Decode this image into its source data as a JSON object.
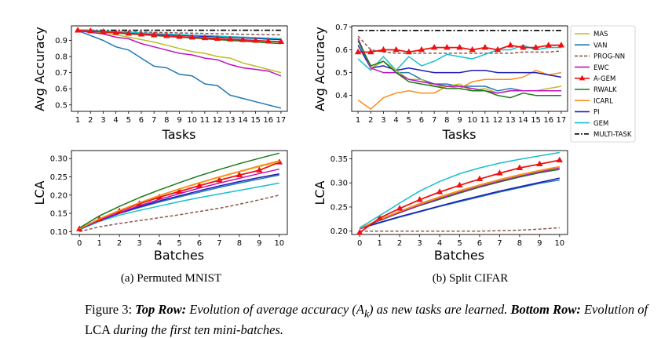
{
  "figure": {
    "subcaptions": [
      "(a) Permuted MNIST",
      "(b) Split CIFAR"
    ],
    "caption": {
      "label": "Figure 3:",
      "top_head": "Top Row:",
      "top_text": "Evolution of average accuracy (",
      "math_a": "A",
      "math_sub": "k",
      "top_text2": ") as new tasks are learned.",
      "bottom_head": "Bottom Row:",
      "bottom_text1": "Evolution of",
      "bottom_lca": "LCA",
      "bottom_text2": "during the first ten mini-batches."
    }
  },
  "legend": {
    "entries": [
      {
        "name": "MAS",
        "color": "#bcbd22",
        "style": "solid"
      },
      {
        "name": "VAN",
        "color": "#1f77b4",
        "style": "solid"
      },
      {
        "name": "PROG-NN",
        "color": "#8c564b",
        "style": "dashed"
      },
      {
        "name": "EWC",
        "color": "#c010c0",
        "style": "solid"
      },
      {
        "name": "A-GEM",
        "color": "#ee1111",
        "style": "triangle"
      },
      {
        "name": "RWALK",
        "color": "#1a7a1a",
        "style": "solid"
      },
      {
        "name": "ICARL",
        "color": "#ff8c1a",
        "style": "solid"
      },
      {
        "name": "PI",
        "color": "#1c1cb4",
        "style": "solid"
      },
      {
        "name": "GEM",
        "color": "#17becf",
        "style": "solid"
      },
      {
        "name": "MULTI-TASK",
        "color": "#000000",
        "style": "dashdot"
      }
    ]
  },
  "chart_data": [
    {
      "id": "mnist-acc",
      "type": "line",
      "xlabel": "Tasks",
      "ylabel": "Avg Accuracy",
      "x": [
        1,
        2,
        3,
        4,
        5,
        6,
        7,
        8,
        9,
        10,
        11,
        12,
        13,
        14,
        15,
        16,
        17
      ],
      "xlim": [
        0.5,
        17.5
      ],
      "ylim": [
        0.46,
        0.99
      ],
      "yticks": [
        0.5,
        0.6,
        0.7,
        0.8,
        0.9
      ],
      "yticks_labels": [
        "0.5",
        "0.6",
        "0.7",
        "0.8",
        "0.9"
      ],
      "series": [
        {
          "name": "MULTI-TASK",
          "values": [
            0.963,
            0.963,
            0.963,
            0.963,
            0.963,
            0.963,
            0.963,
            0.963,
            0.963,
            0.963,
            0.963,
            0.963,
            0.963,
            0.963,
            0.963,
            0.963,
            0.963
          ]
        },
        {
          "name": "PROG-NN",
          "values": [
            0.96,
            0.958,
            0.957,
            0.955,
            0.953,
            0.951,
            0.95,
            0.948,
            0.946,
            0.945,
            0.943,
            0.941,
            0.94,
            0.938,
            0.937,
            0.935,
            0.934
          ]
        },
        {
          "name": "VAN",
          "values": [
            0.96,
            0.93,
            0.9,
            0.86,
            0.84,
            0.79,
            0.74,
            0.73,
            0.69,
            0.68,
            0.63,
            0.62,
            0.56,
            0.54,
            0.52,
            0.5,
            0.48
          ]
        },
        {
          "name": "MAS",
          "values": [
            0.96,
            0.955,
            0.945,
            0.935,
            0.92,
            0.905,
            0.89,
            0.87,
            0.85,
            0.83,
            0.82,
            0.8,
            0.79,
            0.76,
            0.74,
            0.72,
            0.7
          ]
        },
        {
          "name": "EWC",
          "values": [
            0.96,
            0.95,
            0.94,
            0.92,
            0.91,
            0.88,
            0.86,
            0.84,
            0.82,
            0.81,
            0.79,
            0.78,
            0.75,
            0.73,
            0.72,
            0.71,
            0.68
          ]
        },
        {
          "name": "PI",
          "values": [
            0.965,
            0.962,
            0.958,
            0.952,
            0.948,
            0.944,
            0.94,
            0.935,
            0.932,
            0.928,
            0.925,
            0.922,
            0.918,
            0.915,
            0.912,
            0.908,
            0.905
          ]
        },
        {
          "name": "GEM",
          "values": [
            0.965,
            0.962,
            0.958,
            0.953,
            0.95,
            0.946,
            0.943,
            0.939,
            0.936,
            0.932,
            0.93,
            0.927,
            0.923,
            0.92,
            0.917,
            0.914,
            0.911
          ]
        },
        {
          "name": "RWALK",
          "values": [
            0.96,
            0.956,
            0.952,
            0.946,
            0.94,
            0.935,
            0.93,
            0.925,
            0.92,
            0.915,
            0.91,
            0.905,
            0.9,
            0.895,
            0.89,
            0.885,
            0.88
          ]
        },
        {
          "name": "A-GEM",
          "values": [
            0.962,
            0.958,
            0.953,
            0.948,
            0.943,
            0.938,
            0.933,
            0.928,
            0.923,
            0.919,
            0.915,
            0.911,
            0.907,
            0.903,
            0.899,
            0.895,
            0.892
          ]
        }
      ]
    },
    {
      "id": "cifar-acc",
      "type": "line",
      "xlabel": "Tasks",
      "ylabel": "Avg Accuracy",
      "x": [
        1,
        2,
        3,
        4,
        5,
        6,
        7,
        8,
        9,
        10,
        11,
        12,
        13,
        14,
        15,
        16,
        17
      ],
      "xlim": [
        0.5,
        17.5
      ],
      "ylim": [
        0.33,
        0.705
      ],
      "yticks": [
        0.4,
        0.5,
        0.6,
        0.7
      ],
      "yticks_labels": [
        "0.4",
        "0.5",
        "0.6",
        "0.7"
      ],
      "series": [
        {
          "name": "MULTI-TASK",
          "values": [
            0.685,
            0.685,
            0.685,
            0.685,
            0.685,
            0.685,
            0.685,
            0.685,
            0.685,
            0.685,
            0.685,
            0.685,
            0.685,
            0.685,
            0.685,
            0.685,
            0.685
          ]
        },
        {
          "name": "PROG-NN",
          "values": [
            0.66,
            0.6,
            0.59,
            0.585,
            0.585,
            0.585,
            0.585,
            0.585,
            0.585,
            0.585,
            0.585,
            0.585,
            0.585,
            0.59,
            0.59,
            0.59,
            0.595
          ]
        },
        {
          "name": "GEM",
          "values": [
            0.56,
            0.51,
            0.57,
            0.51,
            0.57,
            0.53,
            0.55,
            0.58,
            0.57,
            0.56,
            0.58,
            0.6,
            0.6,
            0.62,
            0.6,
            0.61,
            0.61
          ]
        },
        {
          "name": "ICARL",
          "values": [
            0.38,
            0.34,
            0.39,
            0.41,
            0.42,
            0.41,
            0.41,
            0.44,
            0.43,
            0.46,
            0.47,
            0.47,
            0.47,
            0.48,
            0.51,
            0.49,
            0.5
          ]
        },
        {
          "name": "PI",
          "values": [
            0.62,
            0.52,
            0.53,
            0.51,
            0.52,
            0.51,
            0.5,
            0.5,
            0.5,
            0.51,
            0.51,
            0.5,
            0.5,
            0.5,
            0.5,
            0.49,
            0.48
          ]
        },
        {
          "name": "VAN",
          "values": [
            0.64,
            0.52,
            0.55,
            0.5,
            0.5,
            0.47,
            0.45,
            0.45,
            0.44,
            0.44,
            0.44,
            0.42,
            0.43,
            0.42,
            0.42,
            0.42,
            0.42
          ]
        },
        {
          "name": "MAS",
          "values": [
            0.65,
            0.52,
            0.55,
            0.51,
            0.47,
            0.47,
            0.44,
            0.44,
            0.45,
            0.42,
            0.43,
            0.41,
            0.42,
            0.42,
            0.42,
            0.43,
            0.44
          ]
        },
        {
          "name": "EWC",
          "values": [
            0.65,
            0.52,
            0.5,
            0.5,
            0.47,
            0.46,
            0.45,
            0.44,
            0.44,
            0.43,
            0.42,
            0.41,
            0.42,
            0.42,
            0.42,
            0.42,
            0.42
          ]
        },
        {
          "name": "RWALK",
          "values": [
            0.64,
            0.53,
            0.55,
            0.5,
            0.46,
            0.45,
            0.44,
            0.43,
            0.43,
            0.42,
            0.42,
            0.4,
            0.39,
            0.41,
            0.4,
            0.4,
            0.4
          ]
        },
        {
          "name": "A-GEM",
          "values": [
            0.59,
            0.59,
            0.6,
            0.6,
            0.59,
            0.6,
            0.61,
            0.61,
            0.61,
            0.6,
            0.61,
            0.6,
            0.62,
            0.61,
            0.61,
            0.62,
            0.62
          ]
        }
      ]
    },
    {
      "id": "mnist-lca",
      "type": "line",
      "xlabel": "Batches",
      "ylabel": "LCA",
      "x": [
        0,
        1,
        2,
        3,
        4,
        5,
        6,
        7,
        8,
        9,
        10
      ],
      "xlim": [
        -0.4,
        10.4
      ],
      "ylim": [
        0.092,
        0.322
      ],
      "yticks": [
        0.1,
        0.15,
        0.2,
        0.25,
        0.3
      ],
      "yticks_labels": [
        "0.10",
        "0.15",
        "0.20",
        "0.25",
        "0.30"
      ],
      "series": [
        {
          "name": "PROG-NN",
          "values": [
            0.1,
            0.113,
            0.122,
            0.13,
            0.138,
            0.146,
            0.155,
            0.164,
            0.175,
            0.187,
            0.2
          ]
        },
        {
          "name": "GEM",
          "values": [
            0.105,
            0.128,
            0.145,
            0.158,
            0.17,
            0.182,
            0.193,
            0.203,
            0.213,
            0.223,
            0.233
          ]
        },
        {
          "name": "VAN",
          "values": [
            0.107,
            0.13,
            0.15,
            0.166,
            0.181,
            0.195,
            0.208,
            0.221,
            0.233,
            0.244,
            0.255
          ]
        },
        {
          "name": "PI",
          "values": [
            0.107,
            0.13,
            0.15,
            0.168,
            0.184,
            0.198,
            0.212,
            0.225,
            0.237,
            0.248,
            0.258
          ]
        },
        {
          "name": "EWC",
          "values": [
            0.107,
            0.131,
            0.152,
            0.171,
            0.188,
            0.204,
            0.219,
            0.233,
            0.246,
            0.259,
            0.271
          ]
        },
        {
          "name": "A-GEM",
          "values": [
            0.107,
            0.134,
            0.156,
            0.176,
            0.194,
            0.21,
            0.226,
            0.241,
            0.255,
            0.268,
            0.29
          ]
        },
        {
          "name": "MAS",
          "values": [
            0.108,
            0.135,
            0.158,
            0.179,
            0.198,
            0.216,
            0.233,
            0.249,
            0.264,
            0.278,
            0.292
          ]
        },
        {
          "name": "ICARL",
          "values": [
            0.108,
            0.135,
            0.158,
            0.179,
            0.199,
            0.217,
            0.234,
            0.25,
            0.265,
            0.28,
            0.294
          ]
        },
        {
          "name": "RWALK",
          "values": [
            0.11,
            0.143,
            0.169,
            0.193,
            0.214,
            0.234,
            0.253,
            0.27,
            0.286,
            0.301,
            0.315
          ]
        }
      ]
    },
    {
      "id": "cifar-lca",
      "type": "line",
      "xlabel": "Batches",
      "ylabel": "LCA",
      "x": [
        0,
        1,
        2,
        3,
        4,
        5,
        6,
        7,
        8,
        9,
        10
      ],
      "xlim": [
        -0.4,
        10.4
      ],
      "ylim": [
        0.193,
        0.367
      ],
      "yticks": [
        0.2,
        0.25,
        0.3,
        0.35
      ],
      "yticks_labels": [
        "0.20",
        "0.25",
        "0.30",
        "0.35"
      ],
      "series": [
        {
          "name": "PROG-NN",
          "values": [
            0.2,
            0.2,
            0.2,
            0.2,
            0.2,
            0.2,
            0.2,
            0.201,
            0.202,
            0.204,
            0.207
          ]
        },
        {
          "name": "VAN",
          "values": [
            0.205,
            0.217,
            0.229,
            0.24,
            0.251,
            0.261,
            0.271,
            0.281,
            0.29,
            0.299,
            0.306
          ]
        },
        {
          "name": "PI",
          "values": [
            0.205,
            0.218,
            0.23,
            0.241,
            0.252,
            0.263,
            0.273,
            0.283,
            0.292,
            0.301,
            0.31
          ]
        },
        {
          "name": "RWALK",
          "values": [
            0.205,
            0.222,
            0.238,
            0.253,
            0.266,
            0.279,
            0.291,
            0.302,
            0.312,
            0.321,
            0.328
          ]
        },
        {
          "name": "EWC",
          "values": [
            0.205,
            0.223,
            0.239,
            0.254,
            0.268,
            0.281,
            0.293,
            0.304,
            0.314,
            0.323,
            0.331
          ]
        },
        {
          "name": "MAS",
          "values": [
            0.206,
            0.224,
            0.241,
            0.256,
            0.27,
            0.283,
            0.295,
            0.306,
            0.316,
            0.325,
            0.333
          ]
        },
        {
          "name": "ICARL",
          "values": [
            0.206,
            0.224,
            0.241,
            0.257,
            0.271,
            0.284,
            0.296,
            0.307,
            0.317,
            0.326,
            0.334
          ]
        },
        {
          "name": "A-GEM",
          "values": [
            0.197,
            0.227,
            0.247,
            0.265,
            0.281,
            0.295,
            0.308,
            0.32,
            0.331,
            0.339,
            0.347
          ]
        },
        {
          "name": "GEM",
          "values": [
            0.207,
            0.232,
            0.258,
            0.283,
            0.303,
            0.319,
            0.331,
            0.341,
            0.349,
            0.356,
            0.363
          ]
        }
      ]
    }
  ]
}
